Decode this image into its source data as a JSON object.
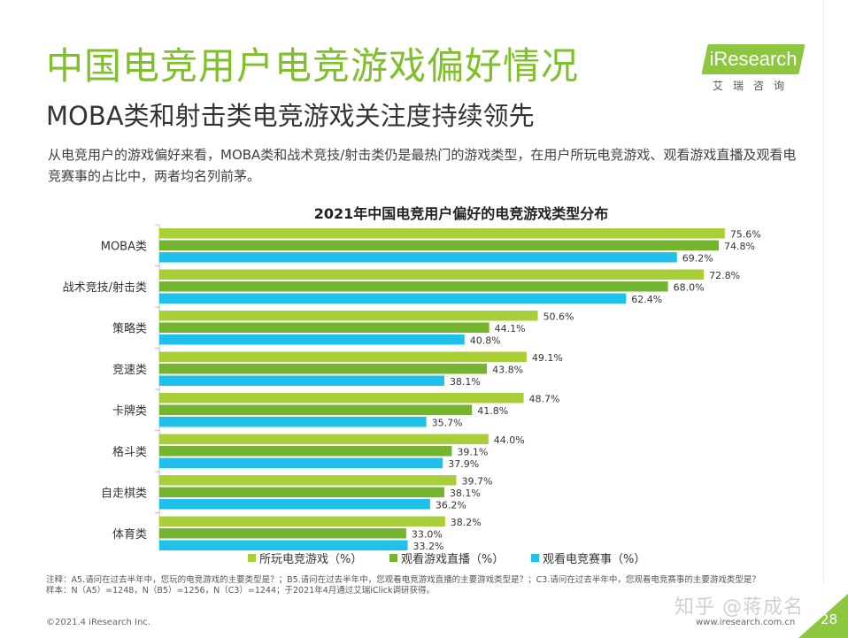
{
  "slide": {
    "title": "中国电竞用户电竞游戏偏好情况",
    "subtitle": "MOBA类和射击类电竞游戏关注度持续领先",
    "description": "从电竞用户的游戏偏好来看，MOBA类和战术竞技/射击类仍是最热门的游戏类型，在用户所玩电竞游戏、观看游戏直播及观看电竞赛事的占比中，两者均名列前茅。",
    "logo": {
      "text": "iResearch",
      "cn": "艾瑞咨询"
    },
    "footnote_line1": "注释：A5.请问在过去半年中，您玩的电竞游戏的主要类型是？；B5.请问在过去半年中，您观看电竞游戏直播的主要游戏类型是？；C3.请问在过去半年中，您观看电竞赛事的主要游戏类型是？",
    "footnote_line2": "样本：N（A5）=1248，N（B5）=1256，N（C3）=1244；于2021年4月通过艾瑞iClick调研获得。",
    "copyright": "©2021.4 iResearch Inc.",
    "site": "www.iresearch.com.cn",
    "watermark": "知乎 @蒋成名",
    "page_number": "28",
    "colors": {
      "brand_green": "#7fbf2a",
      "corner": "#8dc63f"
    }
  },
  "chart_data": {
    "type": "bar",
    "orientation": "horizontal",
    "title": "2021年中国电竞用户偏好的电竞游戏类型分布",
    "categories": [
      "MOBA类",
      "战术竞技/射击类",
      "策略类",
      "竞速类",
      "卡牌类",
      "格斗类",
      "自走棋类",
      "体育类"
    ],
    "series": [
      {
        "name": "所玩电竞游戏（%）",
        "color": "#a8cf38",
        "values": [
          75.6,
          72.8,
          50.6,
          49.1,
          48.7,
          44.0,
          39.7,
          38.2
        ]
      },
      {
        "name": "观看游戏直播（%）",
        "color": "#73b531",
        "values": [
          74.8,
          68.0,
          44.1,
          43.8,
          41.8,
          39.1,
          38.1,
          33.0
        ]
      },
      {
        "name": "观看电竞赛事（%）",
        "color": "#1fc0ea",
        "values": [
          69.2,
          62.4,
          40.8,
          38.1,
          35.7,
          37.9,
          36.2,
          33.2
        ]
      }
    ],
    "xlim": [
      0,
      80
    ],
    "grid": false,
    "legend": "bottom",
    "value_suffix": "%"
  }
}
